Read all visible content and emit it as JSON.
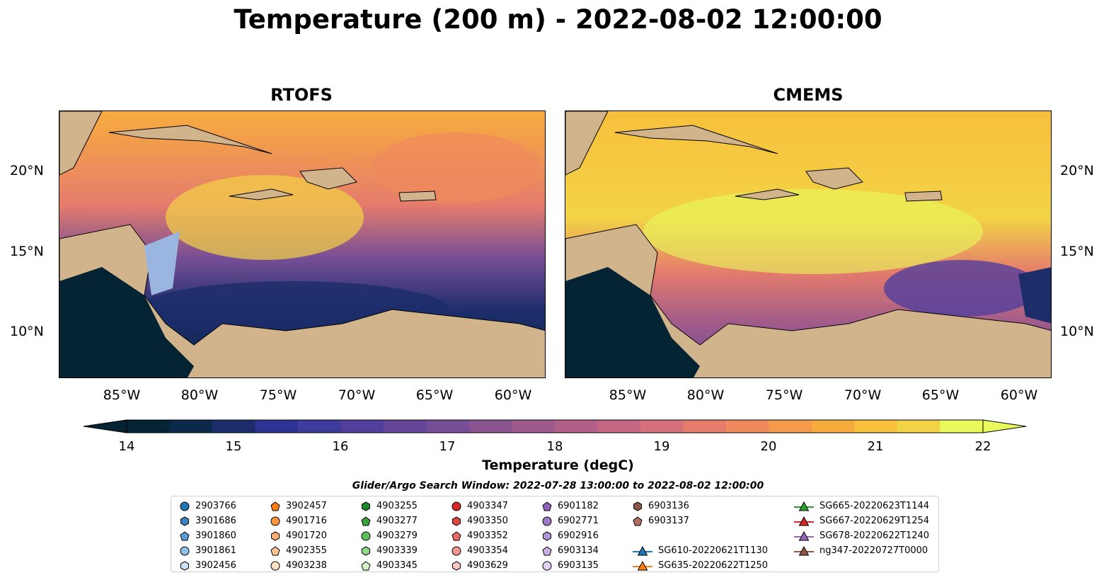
{
  "title": "Temperature (200 m) - 2022-08-02 12:00:00",
  "panels": [
    {
      "id": "rtofs",
      "title": "RTOFS"
    },
    {
      "id": "cmems",
      "title": "CMEMS"
    }
  ],
  "lat_ticks": [
    "20°N",
    "15°N",
    "10°N"
  ],
  "lon_ticks": [
    "85°W",
    "80°W",
    "75°W",
    "70°W",
    "65°W",
    "60°W"
  ],
  "colorbar": {
    "label": "Temperature (degC)",
    "ticks": [
      "14",
      "15",
      "16",
      "17",
      "18",
      "19",
      "20",
      "21",
      "22"
    ],
    "min": 14,
    "max": 22,
    "extend": "both",
    "colors": [
      "#042333",
      "#0b2a4a",
      "#1c2d6a",
      "#2c3393",
      "#3e3b9e",
      "#523f9c",
      "#634698",
      "#764e96",
      "#8a5491",
      "#9e5a8c",
      "#b2608a",
      "#c56683",
      "#d6707a",
      "#e57c6c",
      "#f08a5c",
      "#f59a4a",
      "#f8ac3e",
      "#f8c03c",
      "#f2d346",
      "#e8fa5b"
    ]
  },
  "map_colors": {
    "land": "#d2b48c",
    "shelf": "#9ab6e0",
    "deep": "#042333"
  },
  "search_window": "Glider/Argo Search Window: 2022-07-28 13:00:00 to 2022-08-02 12:00:00",
  "legend": [
    {
      "label": "2903766",
      "marker": "circle",
      "color": "#1f77b4"
    },
    {
      "label": "3901686",
      "marker": "hexagon",
      "color": "#3b83c2"
    },
    {
      "label": "3901860",
      "marker": "pentagon",
      "color": "#5d9bd3"
    },
    {
      "label": "3901861",
      "marker": "circle",
      "color": "#8fc1e8"
    },
    {
      "label": "3902456",
      "marker": "hexagon",
      "color": "#cfe5f6"
    },
    {
      "label": "3902457",
      "marker": "pentagon",
      "color": "#ff7f0e"
    },
    {
      "label": "4901716",
      "marker": "circle",
      "color": "#ff9640"
    },
    {
      "label": "4901720",
      "marker": "hexagon",
      "color": "#ffad70"
    },
    {
      "label": "4902355",
      "marker": "pentagon",
      "color": "#ffc595"
    },
    {
      "label": "4903238",
      "marker": "circle",
      "color": "#ffe0c0"
    },
    {
      "label": "4903255",
      "marker": "hexagon",
      "color": "#1e8a2e"
    },
    {
      "label": "4903277",
      "marker": "pentagon",
      "color": "#3aa33f"
    },
    {
      "label": "4903279",
      "marker": "circle",
      "color": "#5fc05b"
    },
    {
      "label": "4903339",
      "marker": "hexagon",
      "color": "#8fd886"
    },
    {
      "label": "4903345",
      "marker": "pentagon",
      "color": "#d2f2c8"
    },
    {
      "label": "4903347",
      "marker": "circle",
      "color": "#d62728"
    },
    {
      "label": "4903350",
      "marker": "hexagon",
      "color": "#e0453f"
    },
    {
      "label": "4903352",
      "marker": "pentagon",
      "color": "#ea6a66"
    },
    {
      "label": "4903354",
      "marker": "circle",
      "color": "#f39690"
    },
    {
      "label": "4903629",
      "marker": "hexagon",
      "color": "#fbc8c4"
    },
    {
      "label": "6901182",
      "marker": "pentagon",
      "color": "#8c61b8"
    },
    {
      "label": "6902771",
      "marker": "circle",
      "color": "#9e79c6"
    },
    {
      "label": "6902916",
      "marker": "hexagon",
      "color": "#b494d5"
    },
    {
      "label": "6903134",
      "marker": "pentagon",
      "color": "#cbb1e5"
    },
    {
      "label": "6903135",
      "marker": "circle",
      "color": "#e3d2f3"
    },
    {
      "label": "6903136",
      "marker": "hexagon",
      "color": "#8c564b"
    },
    {
      "label": "6903137",
      "marker": "pentagon",
      "color": "#b06e60"
    },
    {
      "label": "SG610-20220621T1130",
      "marker": "triangle-line",
      "color": "#1f77b4"
    },
    {
      "label": "SG635-20220622T1250",
      "marker": "triangle-line",
      "color": "#ff7f0e"
    },
    {
      "label": "SG665-20220623T1144",
      "marker": "triangle-line",
      "color": "#2ca02c"
    },
    {
      "label": "SG667-20220629T1254",
      "marker": "triangle-line",
      "color": "#d62728"
    },
    {
      "label": "SG678-20220622T1240",
      "marker": "triangle-line",
      "color": "#9467bd"
    },
    {
      "label": "ng347-20220727T0000",
      "marker": "triangle-line",
      "color": "#8c564b"
    }
  ]
}
